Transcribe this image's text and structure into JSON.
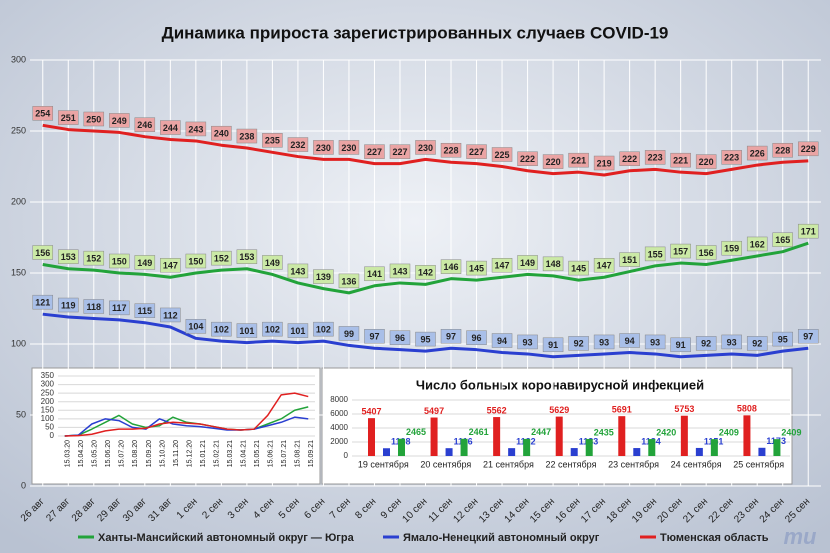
{
  "chart_data": [
    {
      "type": "line",
      "title": "Динамика прироста зарегистрированных случаев COVID-19",
      "categories": [
        "26 авг",
        "27 авг",
        "28 авг",
        "29 авг",
        "30 авг",
        "31 авг",
        "1 сен",
        "2 сен",
        "3 сен",
        "4 сен",
        "5 сен",
        "6 сен",
        "7 сен",
        "8 сен",
        "9 сен",
        "10 сен",
        "11 сен",
        "12 сен",
        "13 сен",
        "14 сен",
        "15 сен",
        "16 сен",
        "17 сен",
        "18 сен",
        "19 сен",
        "20 сен",
        "21 сен",
        "22 сен",
        "23 сен",
        "24 сен",
        "25 сен"
      ],
      "series": [
        {
          "name": "Ханты-Мансийский автономный округ — Югра",
          "color": "#22a33a",
          "values": [
            156,
            153,
            152,
            150,
            149,
            147,
            150,
            152,
            153,
            149,
            143,
            139,
            136,
            141,
            143,
            142,
            146,
            145,
            147,
            149,
            148,
            145,
            147,
            151,
            155,
            157,
            156,
            159,
            162,
            165,
            171
          ]
        },
        {
          "name": "Ямало-Ненецкий автономный округ",
          "color": "#2a3fd0",
          "values": [
            121,
            119,
            118,
            117,
            115,
            112,
            104,
            102,
            101,
            102,
            101,
            102,
            99,
            97,
            96,
            95,
            97,
            96,
            94,
            93,
            91,
            92,
            93,
            94,
            93,
            91,
            92,
            93,
            92,
            95,
            97
          ]
        },
        {
          "name": "Тюменская область",
          "color": "#e02020",
          "values": [
            254,
            251,
            250,
            249,
            246,
            244,
            243,
            240,
            238,
            235,
            232,
            230,
            230,
            227,
            227,
            230,
            228,
            227,
            225,
            222,
            220,
            221,
            219,
            222,
            223,
            221,
            220,
            223,
            226,
            228,
            229
          ]
        }
      ],
      "ylim": [
        0,
        300
      ],
      "yticks": [
        0,
        50,
        100,
        150,
        200,
        250,
        300
      ],
      "grid": true,
      "legend": "bottom",
      "logo": "mu"
    },
    {
      "type": "line",
      "categories": [
        "15.03.20",
        "15.04.20",
        "15.05.20",
        "15.06.20",
        "15.07.20",
        "15.08.20",
        "15.09.20",
        "15.10.20",
        "15.11.20",
        "15.12.20",
        "15.01.21",
        "15.02.21",
        "15.03.21",
        "15.04.21",
        "15.05.21",
        "15.06.21",
        "15.07.21",
        "15.08.21",
        "15.09.21"
      ],
      "series": [
        {
          "color": "#22a33a",
          "values": [
            0,
            5,
            40,
            80,
            120,
            70,
            50,
            60,
            110,
            80,
            70,
            55,
            40,
            35,
            40,
            70,
            100,
            150,
            170
          ]
        },
        {
          "color": "#2a3fd0",
          "values": [
            0,
            5,
            70,
            100,
            90,
            50,
            40,
            100,
            70,
            60,
            55,
            45,
            35,
            35,
            40,
            60,
            80,
            110,
            100
          ]
        },
        {
          "color": "#e02020",
          "values": [
            0,
            2,
            10,
            30,
            40,
            40,
            45,
            70,
            80,
            75,
            70,
            55,
            40,
            35,
            40,
            120,
            240,
            250,
            230
          ]
        }
      ],
      "ylim": [
        0,
        350
      ],
      "yticks": [
        0,
        50,
        100,
        150,
        200,
        250,
        300,
        350
      ]
    },
    {
      "type": "bar",
      "title": "Число больных коронавирусной  инфекцией",
      "categories": [
        "19 сентября",
        "20 сентября",
        "21 сентября",
        "22 сентября",
        "23 сентября",
        "24 сентября",
        "25 сентября"
      ],
      "series": [
        {
          "color": "#e02020",
          "values": [
            5407,
            5497,
            5562,
            5629,
            5691,
            5753,
            5808
          ]
        },
        {
          "color": "#2a3fd0",
          "values": [
            1108,
            1116,
            1122,
            1133,
            1134,
            1151,
            1173
          ]
        },
        {
          "color": "#22a33a",
          "values": [
            2465,
            2461,
            2447,
            2435,
            2420,
            2409,
            2409
          ]
        }
      ],
      "ylim": [
        0,
        8000
      ],
      "yticks": [
        0,
        2000,
        4000,
        6000,
        8000
      ]
    }
  ]
}
